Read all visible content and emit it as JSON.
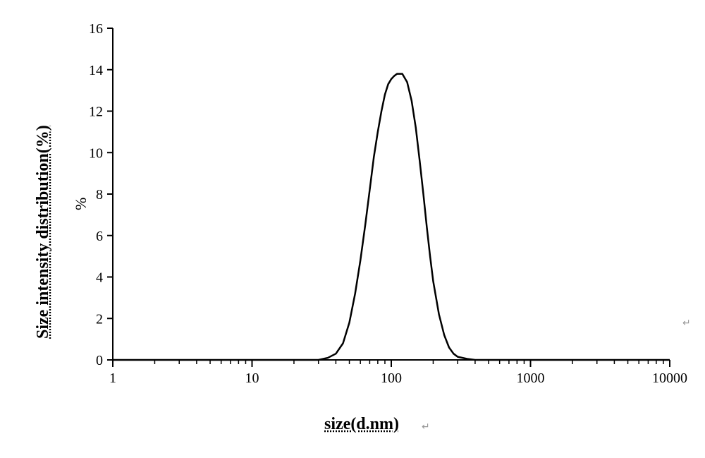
{
  "chart": {
    "type": "line",
    "x_axis_label": "size(d.nm)",
    "y_axis_label": "Size intensity distribution(%)",
    "inner_y_label": "%",
    "x_scale": "log",
    "y_scale": "linear",
    "xlim": [
      1,
      10000
    ],
    "ylim": [
      0,
      16
    ],
    "x_ticks": [
      1,
      10,
      100,
      1000,
      10000
    ],
    "x_tick_labels": [
      "1",
      "10",
      "100",
      "1000",
      "10000"
    ],
    "y_ticks": [
      0,
      2,
      4,
      6,
      8,
      10,
      12,
      14,
      16
    ],
    "y_tick_labels": [
      "0",
      "2",
      "4",
      "6",
      "8",
      "10",
      "12",
      "14",
      "16"
    ],
    "line_color": "#000000",
    "line_width": 2.5,
    "background_color": "#ffffff",
    "axis_color": "#000000",
    "tick_color": "#000000",
    "tick_font_size": 20,
    "label_font_size": 24,
    "inner_label_font_size": 22,
    "data": [
      {
        "x": 1,
        "y": 0
      },
      {
        "x": 5,
        "y": 0
      },
      {
        "x": 10,
        "y": 0
      },
      {
        "x": 20,
        "y": 0
      },
      {
        "x": 30,
        "y": 0
      },
      {
        "x": 35,
        "y": 0.1
      },
      {
        "x": 40,
        "y": 0.3
      },
      {
        "x": 45,
        "y": 0.8
      },
      {
        "x": 50,
        "y": 1.8
      },
      {
        "x": 55,
        "y": 3.2
      },
      {
        "x": 60,
        "y": 4.8
      },
      {
        "x": 65,
        "y": 6.5
      },
      {
        "x": 70,
        "y": 8.2
      },
      {
        "x": 75,
        "y": 9.8
      },
      {
        "x": 80,
        "y": 11.0
      },
      {
        "x": 85,
        "y": 12.0
      },
      {
        "x": 90,
        "y": 12.8
      },
      {
        "x": 95,
        "y": 13.3
      },
      {
        "x": 100,
        "y": 13.55
      },
      {
        "x": 105,
        "y": 13.7
      },
      {
        "x": 110,
        "y": 13.8
      },
      {
        "x": 120,
        "y": 13.8
      },
      {
        "x": 130,
        "y": 13.4
      },
      {
        "x": 140,
        "y": 12.5
      },
      {
        "x": 150,
        "y": 11.2
      },
      {
        "x": 160,
        "y": 9.6
      },
      {
        "x": 170,
        "y": 8.0
      },
      {
        "x": 180,
        "y": 6.4
      },
      {
        "x": 190,
        "y": 5.0
      },
      {
        "x": 200,
        "y": 3.8
      },
      {
        "x": 220,
        "y": 2.2
      },
      {
        "x": 240,
        "y": 1.2
      },
      {
        "x": 260,
        "y": 0.6
      },
      {
        "x": 280,
        "y": 0.3
      },
      {
        "x": 300,
        "y": 0.15
      },
      {
        "x": 350,
        "y": 0.05
      },
      {
        "x": 400,
        "y": 0
      },
      {
        "x": 1000,
        "y": 0
      },
      {
        "x": 10000,
        "y": 0
      }
    ]
  },
  "marks": {
    "arrow": "↵"
  }
}
